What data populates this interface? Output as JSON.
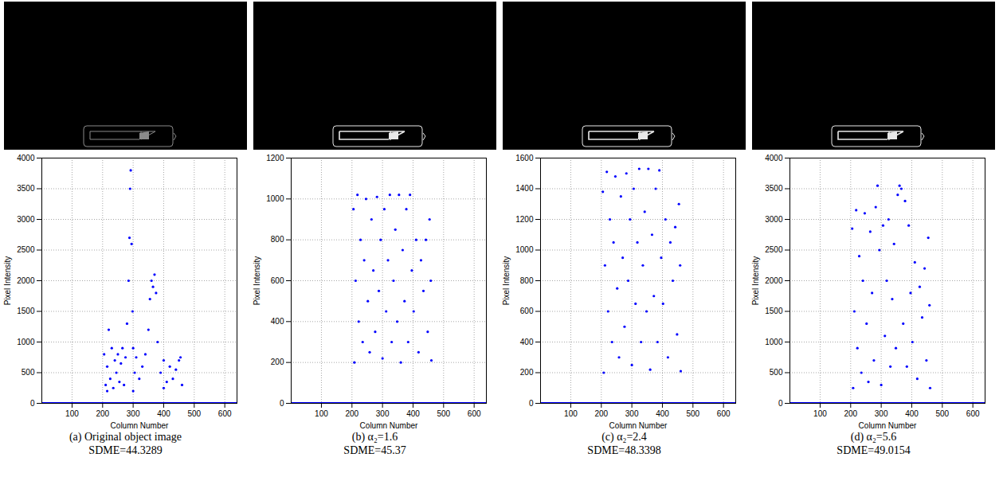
{
  "chart_data": [
    {
      "type": "scatter",
      "caption": "(a) Original object image",
      "metric": "SDME=44.3289",
      "xlabel": "Column Number",
      "ylabel": "Pixel Intensity",
      "xlim": [
        1,
        640
      ],
      "xticks": [
        100,
        200,
        300,
        400,
        500,
        600
      ],
      "ylim": [
        0,
        4000
      ],
      "yticks": [
        0,
        500,
        1000,
        1500,
        2000,
        2500,
        3000,
        3500,
        4000
      ],
      "grid": true,
      "series": [
        {
          "type": "scatter",
          "color": "#0000ff",
          "marker": "dot",
          "x": [
            205,
            210,
            215,
            220,
            225,
            230,
            235,
            240,
            245,
            250,
            255,
            260,
            265,
            270,
            275,
            280,
            285,
            288,
            290,
            292,
            295,
            298,
            300,
            305,
            310,
            320,
            330,
            340,
            350,
            355,
            360,
            365,
            370,
            375,
            380,
            390,
            400,
            410,
            420,
            430,
            440,
            450,
            455,
            460,
            215,
            300,
            400
          ],
          "values": [
            800,
            300,
            600,
            1200,
            400,
            900,
            250,
            700,
            500,
            800,
            350,
            650,
            900,
            300,
            750,
            1300,
            2000,
            2700,
            3500,
            3800,
            2600,
            1500,
            900,
            500,
            750,
            400,
            600,
            800,
            1200,
            1700,
            2000,
            1900,
            2100,
            1800,
            1000,
            500,
            700,
            350,
            600,
            400,
            550,
            700,
            750,
            300,
            200,
            200,
            250
          ]
        },
        {
          "type": "line",
          "color": "#0000ff",
          "x": [
            1,
            640
          ],
          "values": [
            0,
            0
          ]
        }
      ]
    },
    {
      "type": "scatter",
      "caption": "(b) α₂=1.6",
      "metric": "SDME=45.37",
      "xlabel": "Column Number",
      "ylabel": "Pixel Intensity",
      "xlim": [
        1,
        640
      ],
      "xticks": [
        100,
        200,
        300,
        400,
        500,
        600
      ],
      "ylim": [
        0,
        1200
      ],
      "yticks": [
        0,
        200,
        400,
        600,
        800,
        1000,
        1200
      ],
      "grid": true,
      "series": [
        {
          "type": "scatter",
          "color": "#0000ff",
          "marker": "dot",
          "x": [
            205,
            208,
            212,
            218,
            222,
            228,
            235,
            240,
            246,
            252,
            258,
            264,
            270,
            276,
            282,
            288,
            294,
            300,
            306,
            312,
            318,
            324,
            330,
            336,
            342,
            348,
            354,
            360,
            366,
            372,
            378,
            384,
            390,
            396,
            402,
            410,
            418,
            426,
            434,
            442,
            448,
            454,
            458,
            460
          ],
          "values": [
            950,
            200,
            600,
            1020,
            400,
            800,
            300,
            700,
            1000,
            500,
            250,
            900,
            650,
            350,
            1010,
            550,
            800,
            220,
            950,
            450,
            700,
            1020,
            300,
            600,
            850,
            400,
            1020,
            200,
            750,
            500,
            950,
            300,
            1020,
            650,
            450,
            800,
            250,
            700,
            550,
            800,
            350,
            900,
            600,
            210
          ]
        },
        {
          "type": "line",
          "color": "#0000ff",
          "x": [
            1,
            640
          ],
          "values": [
            0,
            0
          ]
        }
      ]
    },
    {
      "type": "scatter",
      "caption": "(c) α₂=2.4",
      "metric": "SDME=48.3398",
      "xlabel": "Column Number",
      "ylabel": "Pixel Intensity",
      "xlim": [
        1,
        640
      ],
      "xticks": [
        100,
        200,
        300,
        400,
        500,
        600
      ],
      "ylim": [
        0,
        1600
      ],
      "yticks": [
        0,
        200,
        400,
        600,
        800,
        1000,
        1200,
        1400,
        1600
      ],
      "grid": true,
      "series": [
        {
          "type": "scatter",
          "color": "#0000ff",
          "marker": "dot",
          "x": [
            205,
            208,
            212,
            218,
            222,
            228,
            235,
            240,
            246,
            252,
            258,
            264,
            270,
            276,
            282,
            288,
            294,
            300,
            306,
            312,
            318,
            324,
            330,
            336,
            342,
            348,
            354,
            360,
            366,
            372,
            378,
            384,
            390,
            396,
            402,
            410,
            418,
            426,
            434,
            442,
            448,
            454,
            458,
            460
          ],
          "values": [
            1380,
            200,
            900,
            1510,
            600,
            1200,
            400,
            1050,
            1480,
            750,
            300,
            1350,
            950,
            500,
            1500,
            800,
            1200,
            250,
            1400,
            650,
            1050,
            1530,
            400,
            900,
            1250,
            600,
            1530,
            220,
            1100,
            700,
            1400,
            400,
            1520,
            950,
            650,
            1200,
            300,
            1050,
            800,
            1150,
            450,
            1300,
            900,
            210
          ]
        },
        {
          "type": "line",
          "color": "#0000ff",
          "x": [
            1,
            640
          ],
          "values": [
            0,
            0
          ]
        }
      ]
    },
    {
      "type": "scatter",
      "caption": "(d) α₂=5.6",
      "metric": "SDME=49.0154",
      "xlabel": "Column Number",
      "ylabel": "Pixel Intensity",
      "xlim": [
        1,
        640
      ],
      "xticks": [
        100,
        200,
        300,
        400,
        500,
        600
      ],
      "ylim": [
        0,
        4000
      ],
      "yticks": [
        0,
        500,
        1000,
        1500,
        2000,
        2500,
        3000,
        3500,
        4000
      ],
      "grid": true,
      "series": [
        {
          "type": "scatter",
          "color": "#0000ff",
          "marker": "dot",
          "x": [
            205,
            208,
            212,
            218,
            222,
            228,
            235,
            240,
            246,
            252,
            258,
            264,
            270,
            276,
            282,
            288,
            294,
            300,
            306,
            312,
            318,
            324,
            330,
            336,
            342,
            348,
            354,
            360,
            366,
            372,
            378,
            384,
            390,
            396,
            402,
            410,
            418,
            426,
            434,
            442,
            448,
            454,
            458,
            460
          ],
          "values": [
            2850,
            250,
            1500,
            3150,
            900,
            2400,
            500,
            2000,
            3100,
            1300,
            350,
            2800,
            1800,
            700,
            3200,
            3550,
            2500,
            300,
            2900,
            1100,
            2000,
            3000,
            600,
            1700,
            2600,
            900,
            3400,
            3550,
            3500,
            1300,
            3300,
            600,
            2900,
            1800,
            1000,
            2300,
            400,
            1900,
            1400,
            2200,
            700,
            2700,
            1600,
            250
          ]
        },
        {
          "type": "line",
          "color": "#0000ff",
          "x": [
            1,
            640
          ],
          "values": [
            0,
            0
          ]
        }
      ]
    }
  ]
}
